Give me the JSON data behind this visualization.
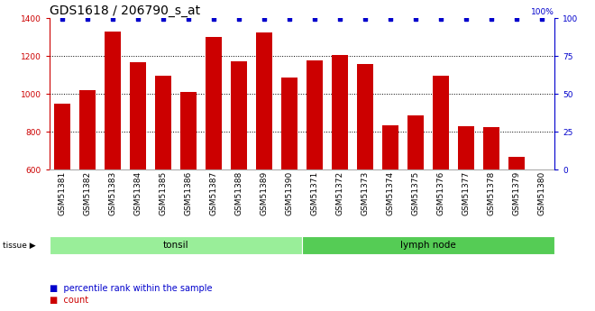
{
  "title": "GDS1618 / 206790_s_at",
  "categories": [
    "GSM51381",
    "GSM51382",
    "GSM51383",
    "GSM51384",
    "GSM51385",
    "GSM51386",
    "GSM51387",
    "GSM51388",
    "GSM51389",
    "GSM51390",
    "GSM51371",
    "GSM51372",
    "GSM51373",
    "GSM51374",
    "GSM51375",
    "GSM51376",
    "GSM51377",
    "GSM51378",
    "GSM51379",
    "GSM51380"
  ],
  "bar_values": [
    950,
    1020,
    1330,
    1165,
    1095,
    1010,
    1300,
    1170,
    1325,
    1085,
    1175,
    1205,
    1155,
    835,
    885,
    1095,
    830,
    825,
    665,
    600
  ],
  "ylim_left": [
    600,
    1400
  ],
  "ylim_right": [
    0,
    100
  ],
  "yticks_left": [
    600,
    800,
    1000,
    1200,
    1400
  ],
  "yticks_right": [
    0,
    25,
    50,
    75,
    100
  ],
  "bar_color": "#cc0000",
  "dot_color": "#0000cc",
  "bg_color": "#ffffff",
  "xtick_bg_color": "#cccccc",
  "tonsil_color": "#99ee99",
  "lymph_color": "#55cc55",
  "tonsil_label": "tonsil",
  "lymph_label": "lymph node",
  "tissue_label": "tissue",
  "legend_count": "count",
  "legend_percentile": "percentile rank within the sample",
  "tonsil_count": 10,
  "lymph_count": 10,
  "title_fontsize": 10,
  "tick_fontsize": 6.5,
  "dot_percentile": 99.5,
  "grid_yticks": [
    800,
    1000,
    1200
  ]
}
